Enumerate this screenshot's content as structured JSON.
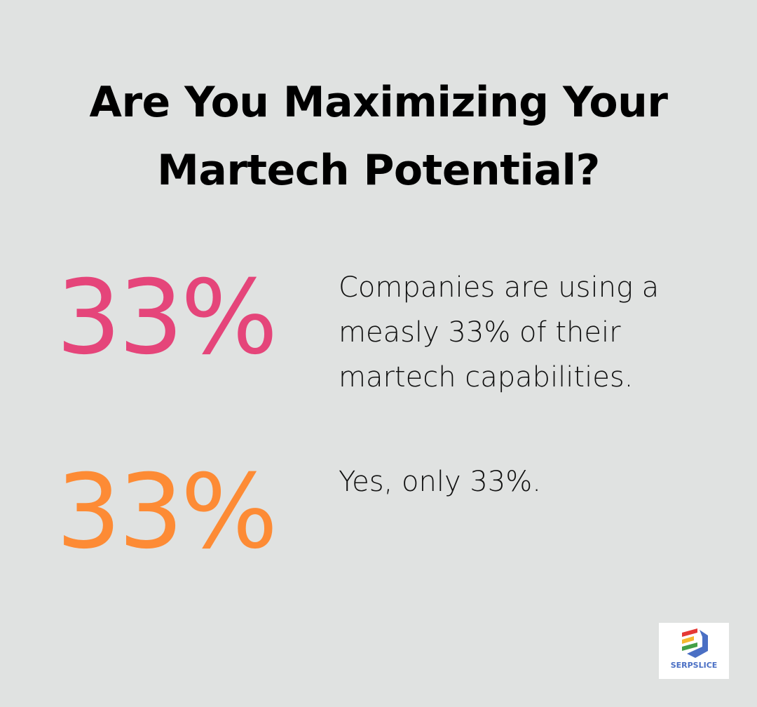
{
  "title": {
    "line1": "Are You Maximizing Your",
    "line2": "Martech Potential?"
  },
  "stats": [
    {
      "value": "33%",
      "text": "Companies are using a measly 33% of their martech capabilities.",
      "color": "#e5457a"
    },
    {
      "value": "33%",
      "text": "Yes, only 33%.",
      "color": "#fd8b35"
    }
  ],
  "logo": {
    "text": "SERPSLICE"
  }
}
